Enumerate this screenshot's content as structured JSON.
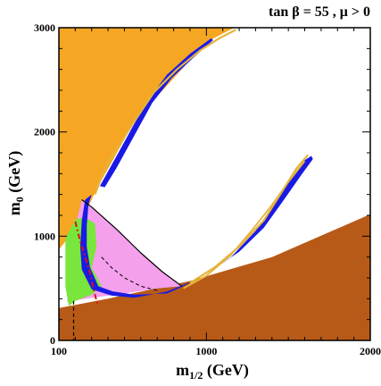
{
  "chart_data": {
    "type": "area",
    "title": "tan β = 55 ,  μ > 0",
    "xlabel": "m",
    "xlabel_sub": "1/2",
    "xlabel_unit": " (GeV)",
    "ylabel": "m",
    "ylabel_sub": "0",
    "ylabel_unit": " (GeV)",
    "xlim": [
      100,
      2000
    ],
    "ylim": [
      0,
      3000
    ],
    "xticks": [
      100,
      1000,
      2000
    ],
    "yticks": [
      0,
      1000,
      2000,
      3000
    ],
    "regions": [
      {
        "name": "orange",
        "color": "#F5A623",
        "points": [
          [
            100,
            3000
          ],
          [
            1170,
            3000
          ],
          [
            1000,
            2860
          ],
          [
            560,
            2100
          ],
          [
            330,
            1450
          ],
          [
            240,
            1150
          ],
          [
            170,
            1050
          ],
          [
            140,
            950
          ],
          [
            100,
            870
          ]
        ]
      },
      {
        "name": "brown",
        "color": "#B85A17",
        "points": [
          [
            100,
            310
          ],
          [
            400,
            400
          ],
          [
            900,
            570
          ],
          [
            1400,
            800
          ],
          [
            2000,
            1210
          ],
          [
            2000,
            0
          ],
          [
            100,
            0
          ]
        ]
      },
      {
        "name": "pink",
        "color": "#F4A0EC",
        "points": [
          [
            240,
            1350
          ],
          [
            300,
            1280
          ],
          [
            450,
            1070
          ],
          [
            600,
            840
          ],
          [
            730,
            660
          ],
          [
            850,
            520
          ],
          [
            700,
            500
          ],
          [
            500,
            450
          ],
          [
            300,
            410
          ],
          [
            150,
            370
          ],
          [
            170,
            800
          ],
          [
            200,
            1100
          ]
        ]
      },
      {
        "name": "green",
        "color": "#78E63C",
        "points": [
          [
            140,
            980
          ],
          [
            200,
            1160
          ],
          [
            260,
            1180
          ],
          [
            320,
            1120
          ],
          [
            330,
            900
          ],
          [
            300,
            700
          ],
          [
            360,
            520
          ],
          [
            300,
            440
          ],
          [
            200,
            380
          ],
          [
            160,
            330
          ],
          [
            140,
            520
          ],
          [
            140,
            800
          ]
        ]
      },
      {
        "name": "blue",
        "color": "#1A1AE6",
        "points": [
          [
            300,
            1400
          ],
          [
            280,
            1300
          ],
          [
            270,
            1100
          ],
          [
            270,
            900
          ],
          [
            290,
            700
          ],
          [
            340,
            520
          ],
          [
            430,
            470
          ],
          [
            560,
            440
          ],
          [
            760,
            450
          ],
          [
            860,
            520
          ],
          [
            1000,
            640
          ],
          [
            1150,
            800
          ],
          [
            1300,
            1050
          ],
          [
            1400,
            1280
          ],
          [
            1520,
            1560
          ],
          [
            1600,
            1730
          ],
          [
            1640,
            1770
          ],
          [
            1650,
            1740
          ],
          [
            1580,
            1590
          ],
          [
            1460,
            1320
          ],
          [
            1350,
            1080
          ],
          [
            1200,
            850
          ],
          [
            1060,
            700
          ],
          [
            900,
            560
          ],
          [
            760,
            470
          ],
          [
            560,
            410
          ],
          [
            420,
            430
          ],
          [
            300,
            490
          ],
          [
            240,
            680
          ],
          [
            230,
            900
          ],
          [
            240,
            1150
          ],
          [
            260,
            1350
          ]
        ]
      },
      {
        "name": "blue-upper",
        "color": "#1A1AE6",
        "points": [
          [
            350,
            1480
          ],
          [
            410,
            1650
          ],
          [
            480,
            1850
          ],
          [
            550,
            2050
          ],
          [
            640,
            2300
          ],
          [
            760,
            2550
          ],
          [
            900,
            2750
          ],
          [
            1030,
            2900
          ],
          [
            1040,
            2880
          ],
          [
            920,
            2710
          ],
          [
            790,
            2520
          ],
          [
            670,
            2280
          ],
          [
            590,
            2050
          ],
          [
            520,
            1850
          ],
          [
            450,
            1650
          ],
          [
            380,
            1470
          ]
        ]
      }
    ],
    "lines": [
      {
        "name": "gold-upper",
        "color": "#E6B43C",
        "width": 2.2,
        "points": [
          [
            320,
            1400
          ],
          [
            380,
            1650
          ],
          [
            470,
            1880
          ],
          [
            560,
            2100
          ],
          [
            680,
            2380
          ],
          [
            820,
            2600
          ],
          [
            960,
            2780
          ],
          [
            1080,
            2900
          ],
          [
            1180,
            2980
          ]
        ]
      },
      {
        "name": "gold-lower",
        "color": "#E6B43C",
        "width": 2.2,
        "points": [
          [
            900,
            550
          ],
          [
            1050,
            700
          ],
          [
            1200,
            900
          ],
          [
            1350,
            1150
          ],
          [
            1450,
            1400
          ],
          [
            1550,
            1650
          ],
          [
            1620,
            1780
          ]
        ]
      },
      {
        "name": "gold-lower-2",
        "color": "#E6B43C",
        "width": 1.8,
        "points": [
          [
            860,
            500
          ],
          [
            1000,
            620
          ],
          [
            1150,
            820
          ],
          [
            1280,
            1060
          ],
          [
            1400,
            1300
          ],
          [
            1500,
            1520
          ],
          [
            1600,
            1720
          ]
        ]
      },
      {
        "name": "black-boundary",
        "color": "#000000",
        "width": 1.2,
        "points": [
          [
            240,
            1350
          ],
          [
            300,
            1280
          ],
          [
            450,
            1070
          ],
          [
            600,
            840
          ],
          [
            730,
            660
          ],
          [
            850,
            520
          ]
        ]
      },
      {
        "name": "red-dashdot",
        "color": "#E01010",
        "width": 2.0,
        "dash": "6,3,2,3",
        "points": [
          [
            200,
            1140
          ],
          [
            230,
            950
          ],
          [
            260,
            800
          ],
          [
            290,
            650
          ],
          [
            310,
            500
          ],
          [
            330,
            380
          ],
          [
            340,
            330
          ]
        ]
      },
      {
        "name": "black-dashed-vertical",
        "color": "#000000",
        "width": 1.2,
        "dash": "4,3",
        "points": [
          [
            190,
            380
          ],
          [
            190,
            0
          ]
        ]
      },
      {
        "name": "black-dashed-diag",
        "color": "#000000",
        "width": 1.0,
        "dash": "4,3",
        "points": [
          [
            360,
            800
          ],
          [
            420,
            700
          ],
          [
            500,
            600
          ],
          [
            600,
            520
          ],
          [
            700,
            480
          ]
        ]
      }
    ]
  }
}
